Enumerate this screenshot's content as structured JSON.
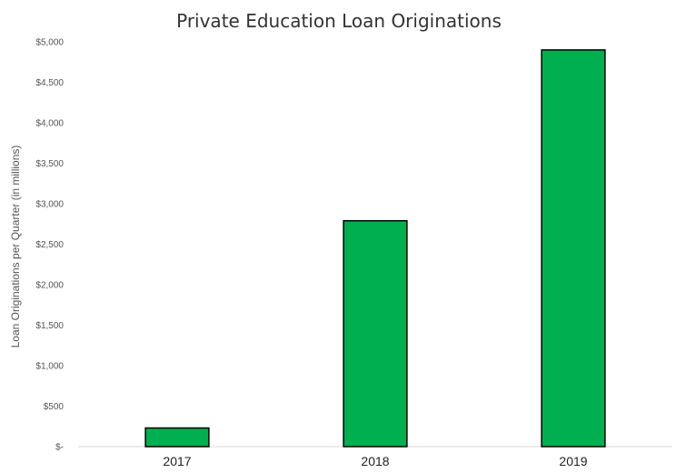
{
  "chart_data": {
    "type": "bar",
    "title": "Private Education Loan Originations",
    "xlabel": "",
    "ylabel": "Loan Originations per Quarter (in millions)",
    "categories": [
      "2017",
      "2018",
      "2019"
    ],
    "values": [
      230,
      2790,
      4900
    ],
    "ylim": [
      0,
      5000
    ],
    "yticks": [
      0,
      500,
      1000,
      1500,
      2000,
      2500,
      3000,
      3500,
      4000,
      4500,
      5000
    ],
    "ytick_labels": [
      "$-",
      "$500",
      "$1,000",
      "$1,500",
      "$2,000",
      "$2,500",
      "$3,000",
      "$3,500",
      "$4,000",
      "$4,500",
      "$5,000"
    ],
    "grid": false,
    "legend": "none",
    "bar_color": "#00b050",
    "bar_edge_color": "#000000"
  }
}
